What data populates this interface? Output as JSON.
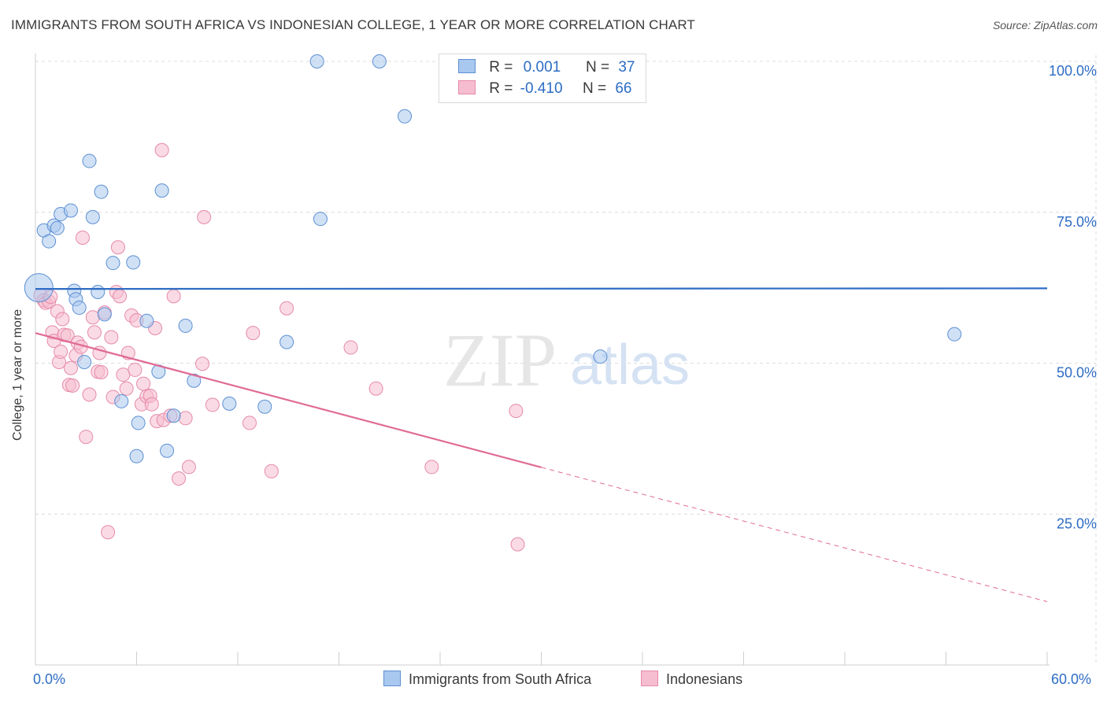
{
  "title": "IMMIGRANTS FROM SOUTH AFRICA VS INDONESIAN COLLEGE, 1 YEAR OR MORE CORRELATION CHART",
  "source": "Source: ZipAtlas.com",
  "watermark": {
    "zip": "ZIP",
    "atlas": "atlas"
  },
  "colors": {
    "blue_fill": "#a9c8ef",
    "blue_stroke": "#5d8fd3",
    "blue_line": "#2d6cc4",
    "pink_fill": "#f6bdd0",
    "pink_stroke": "#e68aa8",
    "pink_line": "#e06b96",
    "grid": "#dcdcdc",
    "accent_text": "#2d6cc4"
  },
  "legend": {
    "rows": [
      {
        "r_label": "R =",
        "r_value": "0.001",
        "n_label": "N =",
        "n_value": "37"
      },
      {
        "r_label": "R =",
        "r_value": "-0.410",
        "n_label": "N =",
        "n_value": "66"
      }
    ]
  },
  "bottom_legend": {
    "series1": "Immigrants from South Africa",
    "series2": "Indonesians"
  },
  "chart_data": {
    "type": "scatter",
    "title": "IMMIGRANTS FROM SOUTH AFRICA VS INDONESIAN COLLEGE, 1 YEAR OR MORE CORRELATION CHART",
    "xlabel": "",
    "ylabel": "College, 1 year or more",
    "xlim": [
      0,
      60
    ],
    "ylim": [
      0,
      100
    ],
    "x_tick_labels": {
      "min": "0.0%",
      "max": "60.0%"
    },
    "y_ticks": [
      {
        "value": 25,
        "label": "25.0%"
      },
      {
        "value": 50,
        "label": "50.0%"
      },
      {
        "value": 75,
        "label": "75.0%"
      },
      {
        "value": 100,
        "label": "100.0%"
      }
    ],
    "series": [
      {
        "name": "Immigrants from South Africa",
        "color": "blue",
        "trend": {
          "x": [
            0,
            60
          ],
          "y": [
            62.3,
            62.4
          ],
          "solid_until": 60
        },
        "points": [
          [
            0.2,
            62.5
          ],
          [
            0.5,
            72
          ],
          [
            0.8,
            70.2
          ],
          [
            1.1,
            72.8
          ],
          [
            1.3,
            72.4
          ],
          [
            1.5,
            74.7
          ],
          [
            2.1,
            75.3
          ],
          [
            2.3,
            62
          ],
          [
            2.4,
            60.6
          ],
          [
            2.6,
            59.2
          ],
          [
            2.9,
            50.2
          ],
          [
            3.2,
            83.5
          ],
          [
            3.4,
            74.2
          ],
          [
            3.7,
            61.8
          ],
          [
            3.9,
            78.4
          ],
          [
            4.1,
            58.1
          ],
          [
            4.6,
            66.6
          ],
          [
            5.1,
            43.7
          ],
          [
            5.8,
            66.7
          ],
          [
            6.0,
            34.6
          ],
          [
            6.1,
            40.1
          ],
          [
            6.6,
            57
          ],
          [
            7.3,
            48.6
          ],
          [
            7.5,
            78.6
          ],
          [
            7.8,
            35.5
          ],
          [
            8.2,
            41.3
          ],
          [
            8.9,
            56.2
          ],
          [
            9.4,
            47.1
          ],
          [
            11.5,
            43.3
          ],
          [
            13.6,
            42.8
          ],
          [
            14.9,
            53.5
          ],
          [
            16.9,
            73.9
          ],
          [
            16.7,
            100
          ],
          [
            20.4,
            100
          ],
          [
            21.9,
            90.9
          ],
          [
            33.5,
            51.1
          ],
          [
            54.5,
            54.8
          ]
        ]
      },
      {
        "name": "Indonesians",
        "color": "pink",
        "trend": {
          "x": [
            0,
            60
          ],
          "y": [
            55.0,
            10.5
          ],
          "solid_until": 30
        },
        "points": [
          [
            0.3,
            61.3
          ],
          [
            0.5,
            60.4
          ],
          [
            0.6,
            60.0
          ],
          [
            0.8,
            60.2
          ],
          [
            0.9,
            61.0
          ],
          [
            1.0,
            55.1
          ],
          [
            1.1,
            53.7
          ],
          [
            1.3,
            58.6
          ],
          [
            1.4,
            50.2
          ],
          [
            1.5,
            51.9
          ],
          [
            1.6,
            57.3
          ],
          [
            1.7,
            54.7
          ],
          [
            1.9,
            54.6
          ],
          [
            2.0,
            46.4
          ],
          [
            2.1,
            49.2
          ],
          [
            2.2,
            46.3
          ],
          [
            2.4,
            51.3
          ],
          [
            2.5,
            53.4
          ],
          [
            2.7,
            52.7
          ],
          [
            2.8,
            70.8
          ],
          [
            3.0,
            37.8
          ],
          [
            3.2,
            44.8
          ],
          [
            3.4,
            57.6
          ],
          [
            3.5,
            55.1
          ],
          [
            3.7,
            48.6
          ],
          [
            3.8,
            51.7
          ],
          [
            3.9,
            48.5
          ],
          [
            4.1,
            58.4
          ],
          [
            4.3,
            22
          ],
          [
            4.5,
            54.3
          ],
          [
            4.6,
            44.4
          ],
          [
            4.8,
            61.8
          ],
          [
            4.9,
            69.2
          ],
          [
            5.0,
            61.1
          ],
          [
            5.2,
            48.1
          ],
          [
            5.4,
            45.8
          ],
          [
            5.5,
            51.7
          ],
          [
            5.7,
            57.9
          ],
          [
            5.9,
            48.9
          ],
          [
            6.0,
            57.1
          ],
          [
            6.3,
            43.2
          ],
          [
            6.4,
            46.6
          ],
          [
            6.6,
            44.5
          ],
          [
            6.8,
            44.6
          ],
          [
            6.9,
            43.2
          ],
          [
            7.1,
            55.8
          ],
          [
            7.2,
            40.4
          ],
          [
            7.5,
            85.3
          ],
          [
            7.6,
            40.6
          ],
          [
            8.0,
            41.3
          ],
          [
            8.2,
            61.1
          ],
          [
            8.5,
            30.9
          ],
          [
            8.9,
            40.9
          ],
          [
            9.1,
            32.8
          ],
          [
            9.9,
            49.9
          ],
          [
            10.0,
            74.2
          ],
          [
            10.5,
            43.1
          ],
          [
            12.7,
            40.1
          ],
          [
            12.9,
            55
          ],
          [
            14.0,
            32.1
          ],
          [
            14.9,
            59.1
          ],
          [
            18.7,
            52.6
          ],
          [
            20.2,
            45.8
          ],
          [
            23.5,
            32.8
          ],
          [
            28.5,
            42.1
          ],
          [
            28.6,
            20
          ]
        ]
      }
    ]
  }
}
